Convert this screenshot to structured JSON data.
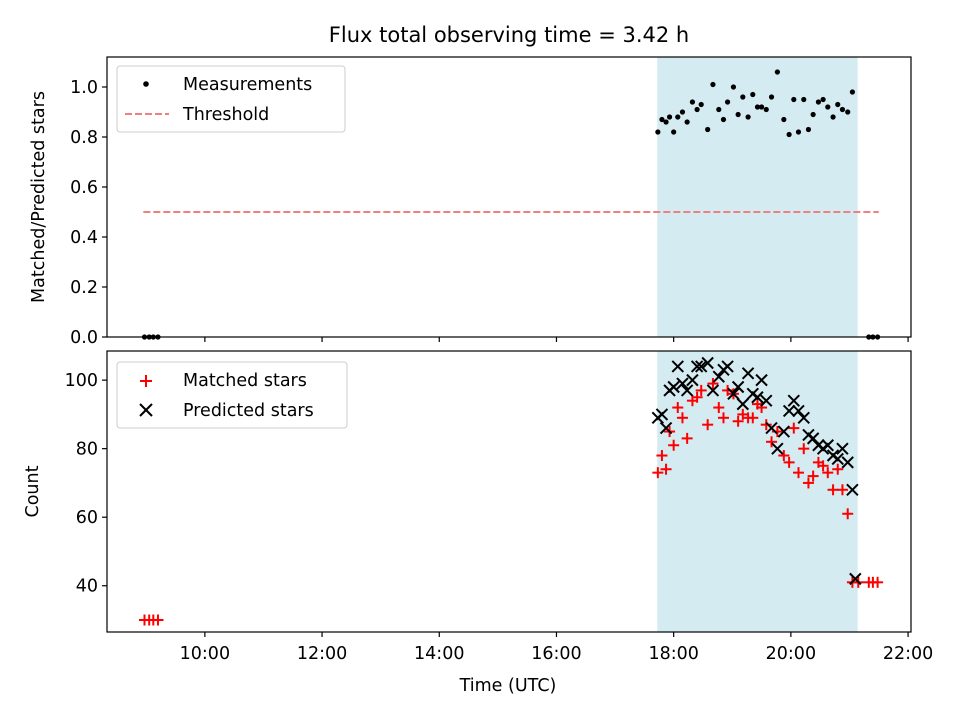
{
  "chart_data": [
    {
      "type": "scatter",
      "title": "Flux total observing time = 3.42 h",
      "xlabel": "",
      "ylabel": "Matched/Predicted stars",
      "xlim_hours": [
        8.33,
        22.05
      ],
      "ylim": [
        0,
        1.12
      ],
      "yticks": [
        0.0,
        0.2,
        0.4,
        0.6,
        0.8,
        1.0
      ],
      "ytick_labels": [
        "0.0",
        "0.2",
        "0.4",
        "0.6",
        "0.8",
        "1.0"
      ],
      "shaded_region_hours": [
        17.72,
        21.14
      ],
      "shade_color": "#d4ebf1",
      "legend": [
        {
          "label": "Measurements",
          "marker": "dot",
          "color": "#000000"
        },
        {
          "label": "Threshold",
          "marker": "dashed-line",
          "color": "#f08080"
        }
      ],
      "legend_position": "upper-left",
      "threshold": {
        "value": 0.5,
        "x_range_hours": [
          8.95,
          21.5
        ],
        "color": "#f08080"
      },
      "measurements": [
        {
          "t": 8.97,
          "v": 0.0
        },
        {
          "t": 9.05,
          "v": 0.0
        },
        {
          "t": 9.12,
          "v": 0.0
        },
        {
          "t": 9.2,
          "v": 0.0
        },
        {
          "t": 17.73,
          "v": 0.82
        },
        {
          "t": 17.8,
          "v": 0.87
        },
        {
          "t": 17.87,
          "v": 0.86
        },
        {
          "t": 17.93,
          "v": 0.88
        },
        {
          "t": 18.0,
          "v": 0.82
        },
        {
          "t": 18.07,
          "v": 0.88
        },
        {
          "t": 18.15,
          "v": 0.9
        },
        {
          "t": 18.23,
          "v": 0.86
        },
        {
          "t": 18.32,
          "v": 0.94
        },
        {
          "t": 18.4,
          "v": 0.91
        },
        {
          "t": 18.47,
          "v": 0.93
        },
        {
          "t": 18.58,
          "v": 0.83
        },
        {
          "t": 18.67,
          "v": 1.01
        },
        {
          "t": 18.77,
          "v": 0.91
        },
        {
          "t": 18.85,
          "v": 0.87
        },
        {
          "t": 18.92,
          "v": 0.94
        },
        {
          "t": 19.02,
          "v": 1.0
        },
        {
          "t": 19.1,
          "v": 0.89
        },
        {
          "t": 19.18,
          "v": 0.96
        },
        {
          "t": 19.27,
          "v": 0.88
        },
        {
          "t": 19.35,
          "v": 0.97
        },
        {
          "t": 19.43,
          "v": 0.92
        },
        {
          "t": 19.5,
          "v": 0.92
        },
        {
          "t": 19.58,
          "v": 0.91
        },
        {
          "t": 19.67,
          "v": 0.96
        },
        {
          "t": 19.77,
          "v": 1.06
        },
        {
          "t": 19.88,
          "v": 0.87
        },
        {
          "t": 19.97,
          "v": 0.81
        },
        {
          "t": 20.05,
          "v": 0.95
        },
        {
          "t": 20.13,
          "v": 0.82
        },
        {
          "t": 20.22,
          "v": 0.95
        },
        {
          "t": 20.3,
          "v": 0.83
        },
        {
          "t": 20.38,
          "v": 0.89
        },
        {
          "t": 20.47,
          "v": 0.94
        },
        {
          "t": 20.55,
          "v": 0.95
        },
        {
          "t": 20.63,
          "v": 0.92
        },
        {
          "t": 20.72,
          "v": 0.88
        },
        {
          "t": 20.8,
          "v": 0.93
        },
        {
          "t": 20.88,
          "v": 0.91
        },
        {
          "t": 20.97,
          "v": 0.9
        },
        {
          "t": 21.05,
          "v": 0.98
        },
        {
          "t": 21.33,
          "v": 0.0
        },
        {
          "t": 21.4,
          "v": 0.0
        },
        {
          "t": 21.48,
          "v": 0.0
        }
      ]
    },
    {
      "type": "scatter",
      "title": "",
      "xlabel": "Time (UTC)",
      "ylabel": "Count",
      "xlim_hours": [
        8.33,
        22.05
      ],
      "ylim": [
        26.5,
        108.5
      ],
      "yticks": [
        40,
        60,
        80,
        100
      ],
      "ytick_labels": [
        "40",
        "60",
        "80",
        "100"
      ],
      "xticks_hours": [
        10,
        12,
        14,
        16,
        18,
        20,
        22
      ],
      "xtick_labels": [
        "10:00",
        "12:00",
        "14:00",
        "16:00",
        "18:00",
        "20:00",
        "22:00"
      ],
      "shaded_region_hours": [
        17.72,
        21.14
      ],
      "shade_color": "#d4ebf1",
      "legend": [
        {
          "label": "Matched stars",
          "marker": "plus",
          "color": "#ff0000"
        },
        {
          "label": "Predicted stars",
          "marker": "x",
          "color": "#000000"
        }
      ],
      "legend_position": "upper-left",
      "matched": [
        {
          "t": 8.97,
          "v": 30
        },
        {
          "t": 9.05,
          "v": 30
        },
        {
          "t": 9.12,
          "v": 30
        },
        {
          "t": 9.2,
          "v": 30
        },
        {
          "t": 17.73,
          "v": 73
        },
        {
          "t": 17.8,
          "v": 78
        },
        {
          "t": 17.87,
          "v": 74
        },
        {
          "t": 17.93,
          "v": 85
        },
        {
          "t": 18.0,
          "v": 81
        },
        {
          "t": 18.07,
          "v": 92
        },
        {
          "t": 18.15,
          "v": 89
        },
        {
          "t": 18.23,
          "v": 83
        },
        {
          "t": 18.32,
          "v": 94
        },
        {
          "t": 18.4,
          "v": 95
        },
        {
          "t": 18.47,
          "v": 97
        },
        {
          "t": 18.58,
          "v": 87
        },
        {
          "t": 18.67,
          "v": 99
        },
        {
          "t": 18.77,
          "v": 92
        },
        {
          "t": 18.85,
          "v": 89
        },
        {
          "t": 18.92,
          "v": 97
        },
        {
          "t": 19.02,
          "v": 96
        },
        {
          "t": 19.1,
          "v": 88
        },
        {
          "t": 19.18,
          "v": 90
        },
        {
          "t": 19.27,
          "v": 89
        },
        {
          "t": 19.35,
          "v": 89
        },
        {
          "t": 19.43,
          "v": 93
        },
        {
          "t": 19.5,
          "v": 92
        },
        {
          "t": 19.58,
          "v": 87
        },
        {
          "t": 19.67,
          "v": 82
        },
        {
          "t": 19.77,
          "v": 85
        },
        {
          "t": 19.88,
          "v": 78
        },
        {
          "t": 19.97,
          "v": 76
        },
        {
          "t": 20.05,
          "v": 86
        },
        {
          "t": 20.13,
          "v": 73
        },
        {
          "t": 20.22,
          "v": 80
        },
        {
          "t": 20.3,
          "v": 70
        },
        {
          "t": 20.38,
          "v": 72
        },
        {
          "t": 20.47,
          "v": 76
        },
        {
          "t": 20.55,
          "v": 75
        },
        {
          "t": 20.63,
          "v": 73
        },
        {
          "t": 20.72,
          "v": 68
        },
        {
          "t": 20.8,
          "v": 74
        },
        {
          "t": 20.88,
          "v": 68
        },
        {
          "t": 20.97,
          "v": 61
        },
        {
          "t": 21.05,
          "v": 41
        },
        {
          "t": 21.15,
          "v": 41
        },
        {
          "t": 21.33,
          "v": 41
        },
        {
          "t": 21.4,
          "v": 41
        },
        {
          "t": 21.48,
          "v": 41
        }
      ],
      "predicted": [
        {
          "t": 17.73,
          "v": 89
        },
        {
          "t": 17.8,
          "v": 90
        },
        {
          "t": 17.87,
          "v": 86
        },
        {
          "t": 17.93,
          "v": 97
        },
        {
          "t": 18.0,
          "v": 98
        },
        {
          "t": 18.07,
          "v": 104
        },
        {
          "t": 18.15,
          "v": 99
        },
        {
          "t": 18.23,
          "v": 97
        },
        {
          "t": 18.32,
          "v": 100
        },
        {
          "t": 18.4,
          "v": 104
        },
        {
          "t": 18.47,
          "v": 104
        },
        {
          "t": 18.58,
          "v": 105
        },
        {
          "t": 18.67,
          "v": 97
        },
        {
          "t": 18.77,
          "v": 101
        },
        {
          "t": 18.85,
          "v": 103
        },
        {
          "t": 18.92,
          "v": 104
        },
        {
          "t": 19.02,
          "v": 96
        },
        {
          "t": 19.1,
          "v": 98
        },
        {
          "t": 19.18,
          "v": 93
        },
        {
          "t": 19.27,
          "v": 102
        },
        {
          "t": 19.35,
          "v": 96
        },
        {
          "t": 19.43,
          "v": 95
        },
        {
          "t": 19.5,
          "v": 100
        },
        {
          "t": 19.58,
          "v": 94
        },
        {
          "t": 19.67,
          "v": 86
        },
        {
          "t": 19.77,
          "v": 80
        },
        {
          "t": 19.88,
          "v": 85
        },
        {
          "t": 19.97,
          "v": 91
        },
        {
          "t": 20.05,
          "v": 94
        },
        {
          "t": 20.13,
          "v": 91
        },
        {
          "t": 20.22,
          "v": 89
        },
        {
          "t": 20.3,
          "v": 84
        },
        {
          "t": 20.38,
          "v": 83
        },
        {
          "t": 20.47,
          "v": 81
        },
        {
          "t": 20.55,
          "v": 80
        },
        {
          "t": 20.63,
          "v": 81
        },
        {
          "t": 20.72,
          "v": 78
        },
        {
          "t": 20.8,
          "v": 77
        },
        {
          "t": 20.88,
          "v": 80
        },
        {
          "t": 20.97,
          "v": 76
        },
        {
          "t": 21.05,
          "v": 68
        },
        {
          "t": 21.1,
          "v": 42
        }
      ]
    }
  ]
}
